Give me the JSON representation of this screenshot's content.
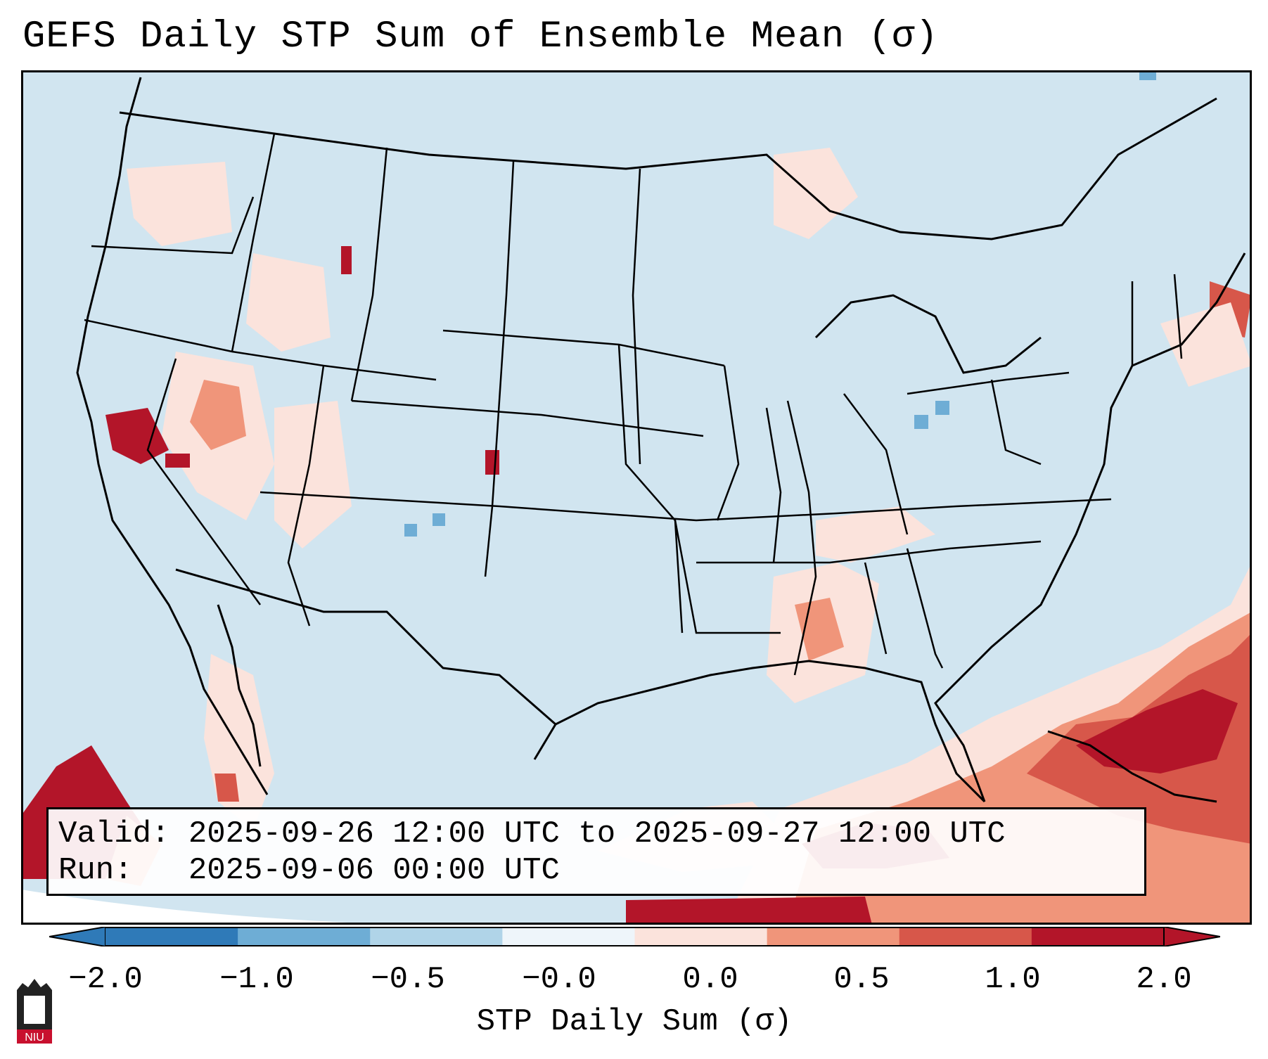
{
  "title": "GEFS Daily STP Sum of Ensemble Mean (σ)",
  "info": {
    "valid": "Valid: 2025-09-26 12:00 UTC to 2025-09-27 12:00 UTC",
    "run": "Run:   2025-09-06 00:00 UTC"
  },
  "colorbar": {
    "label": "STP Daily Sum (σ)",
    "ticks": [
      "−2.0",
      "−1.0",
      "−0.5",
      "−0.0",
      "0.0",
      "0.5",
      "1.0",
      "2.0"
    ],
    "colors": [
      "#2f7ab8",
      "#6eadd5",
      "#b0d4e8",
      "#eef5fa",
      "#fbe3dc",
      "#f0957a",
      "#d7574a",
      "#b31529"
    ]
  },
  "map": {
    "background_color": "#d1e5f0",
    "land_outline_color": "#000000"
  },
  "logo": {
    "text": "NIU"
  }
}
